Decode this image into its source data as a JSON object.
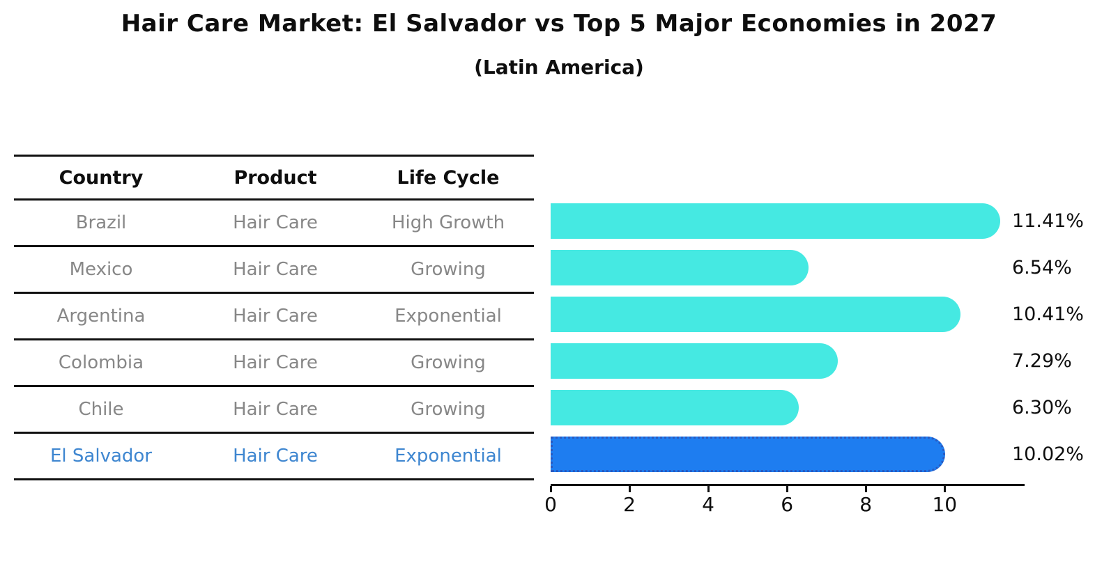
{
  "title": "Hair Care Market: El Salvador vs Top 5 Major Economies in 2027",
  "subtitle": "(Latin America)",
  "table": {
    "headers": [
      "Country",
      "Product",
      "Life Cycle"
    ],
    "rows": [
      [
        "Brazil",
        "Hair Care",
        "High Growth"
      ],
      [
        "Mexico",
        "Hair Care",
        "Growing"
      ],
      [
        "Argentina",
        "Hair Care",
        "Exponential"
      ],
      [
        "Colombia",
        "Hair Care",
        "Growing"
      ],
      [
        "Chile",
        "Hair Care",
        "Growing"
      ],
      [
        "El Salvador",
        "Hair Care",
        "Exponential"
      ]
    ],
    "highlight_row_index": 5
  },
  "chart_data": {
    "type": "bar",
    "orientation": "horizontal",
    "title": "Hair Care Market: El Salvador vs Top 5 Major Economies in 2027",
    "subtitle": "(Latin America)",
    "categories": [
      "Brazil",
      "Mexico",
      "Argentina",
      "Colombia",
      "Chile",
      "El Salvador"
    ],
    "values": [
      11.41,
      6.54,
      10.41,
      7.29,
      6.3,
      10.02
    ],
    "value_labels": [
      "11.41%",
      "6.54%",
      "10.41%",
      "7.29%",
      "6.30%",
      "10.02%"
    ],
    "xlabel": "",
    "ylabel": "",
    "xlim": [
      0,
      12.03
    ],
    "xticks": [
      0,
      2,
      4,
      6,
      8,
      10
    ],
    "grid": false,
    "legend": "none",
    "highlight_index": 5,
    "colors": {
      "bar": "#45e9e2",
      "highlight_bar": "#1e7df0",
      "highlight_bar_border": "#2a5ac0",
      "highlight_text": "#3e86d0",
      "row_text": "#878787",
      "ink": "#111111"
    }
  }
}
